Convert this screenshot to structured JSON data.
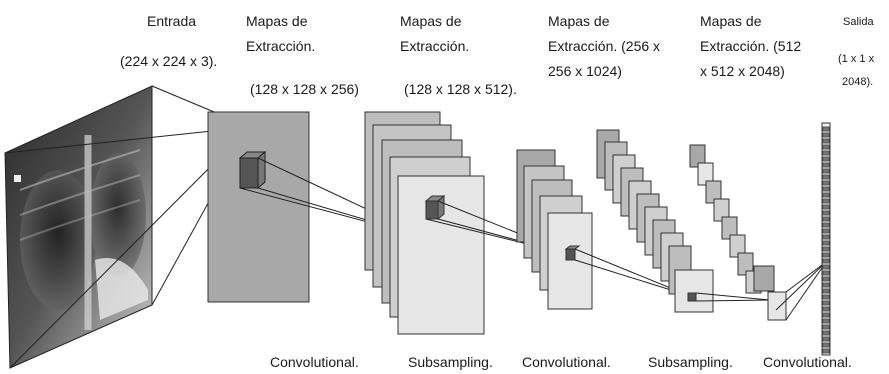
{
  "labels": {
    "input_title": "Entrada",
    "input_dims": "(224 x 224 x 3).",
    "map1_title_a": "Mapas de",
    "map1_title_b": "Extracción.",
    "map1_dims": "(128 x 128 x 256)",
    "map2_title_a": "Mapas de",
    "map2_title_b": "Extracción.",
    "map2_dims": "(128 x 128 x 512).",
    "map3_title_a": "Mapas de",
    "map3_title_b": "Extracción. (256 x",
    "map3_dims": "256 x 1024)",
    "map4_title_a": "Mapas de",
    "map4_title_b": "Extracción. (512",
    "map4_dims": "x 512 x 2048)",
    "output_title": "Salida",
    "output_dims_a": "(1 x 1 x",
    "output_dims_b": "2048)."
  },
  "operations": [
    "Convolutional.",
    "Subsampling.",
    "Convolutional.",
    "Subsampling.",
    "Convolutional."
  ],
  "colors": {
    "dark_map": "#a8a8a8",
    "mid_map": "#bdbdbd",
    "light_map": "#e6e6e6",
    "stroke": "#333333",
    "kernel": "#555555"
  }
}
